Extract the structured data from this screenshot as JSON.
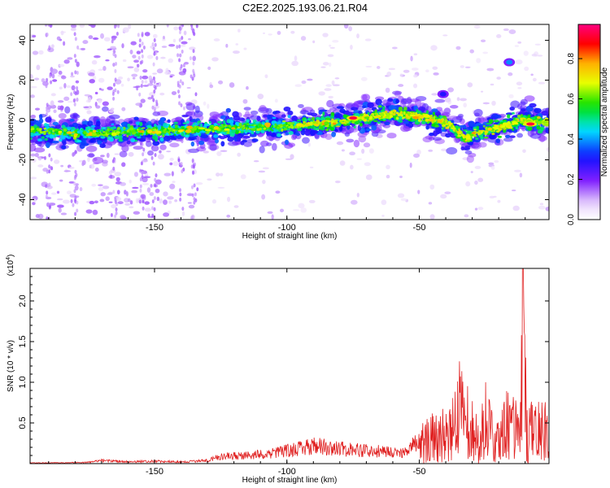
{
  "figure_title": "C2E2.2025.193.06.21.R04",
  "chart_data": [
    {
      "type": "heatmap",
      "xlabel": "Height of straight line (km)",
      "ylabel": "Frequency (Hz)",
      "xlim": [
        -197,
        -1
      ],
      "ylim": [
        -50,
        48
      ],
      "xticks": [
        -150,
        -100,
        -50
      ],
      "yticks": [
        -40,
        -20,
        0,
        20,
        40
      ],
      "colorbar": {
        "label": "Normalized spectral amplitude",
        "range": [
          0,
          0.97
        ],
        "ticks": [
          "0.0",
          "0.2",
          "0.4",
          "0.6",
          "0.8"
        ],
        "tick_values": [
          0,
          0.2,
          0.4,
          0.6,
          0.8
        ]
      },
      "ridge": {
        "x": [
          -197,
          -180,
          -160,
          -140,
          -120,
          -100,
          -80,
          -70,
          -60,
          -50,
          -43,
          -38,
          -32,
          -28,
          -20,
          -12,
          -5,
          -1
        ],
        "frequency": [
          -5,
          -7,
          -6,
          -5,
          -4,
          -3,
          -1,
          1,
          3,
          2,
          0,
          -3,
          -9,
          -6,
          -4,
          0,
          -1,
          -1
        ]
      },
      "features": [
        {
          "x": -41,
          "frequency": 13,
          "amplitude": 0.3
        },
        {
          "x": -16,
          "frequency": 29,
          "amplitude": 0.4
        },
        {
          "x": -75,
          "frequency": 1,
          "amplitude": 0.95
        },
        {
          "x": -8,
          "frequency": -2,
          "amplitude": 0.95
        }
      ]
    },
    {
      "type": "line",
      "xlabel": "Height of straight line (km)",
      "ylabel": "SNR (10 * v/v)",
      "y_multiplier_label": "(x10",
      "y_multiplier_exp": "4",
      "y_multiplier_close": ")",
      "xlim": [
        -197,
        -1
      ],
      "ylim": [
        0,
        2.4
      ],
      "xticks": [
        -150,
        -100,
        -50
      ],
      "yticks": [
        0.5,
        1.0,
        1.5,
        2.0
      ],
      "yticklabels": [
        "0.5",
        "1.0",
        "1.5",
        "2.0"
      ],
      "color": "#e02020",
      "series": [
        {
          "x": [
            -197,
            -175,
            -170,
            -160,
            -150,
            -140,
            -130,
            -125,
            -115,
            -105,
            -100,
            -92,
            -88,
            -80,
            -70,
            -60,
            -55,
            -50,
            -47,
            -43,
            -40,
            -37,
            -35,
            -33,
            -30,
            -27,
            -25,
            -22,
            -20,
            -17,
            -14,
            -12,
            -11,
            -9,
            -7,
            -4,
            -1
          ],
          "values": [
            0.01,
            0.02,
            0.05,
            0.03,
            0.04,
            0.03,
            0.05,
            0.12,
            0.14,
            0.18,
            0.22,
            0.28,
            0.3,
            0.25,
            0.22,
            0.2,
            0.18,
            0.4,
            0.65,
            0.8,
            0.6,
            0.9,
            1.3,
            1.0,
            0.9,
            0.5,
            1.1,
            0.6,
            0.55,
            0.9,
            0.85,
            0.5,
            2.4,
            0.6,
            0.9,
            0.75,
            1.1
          ]
        }
      ]
    }
  ]
}
